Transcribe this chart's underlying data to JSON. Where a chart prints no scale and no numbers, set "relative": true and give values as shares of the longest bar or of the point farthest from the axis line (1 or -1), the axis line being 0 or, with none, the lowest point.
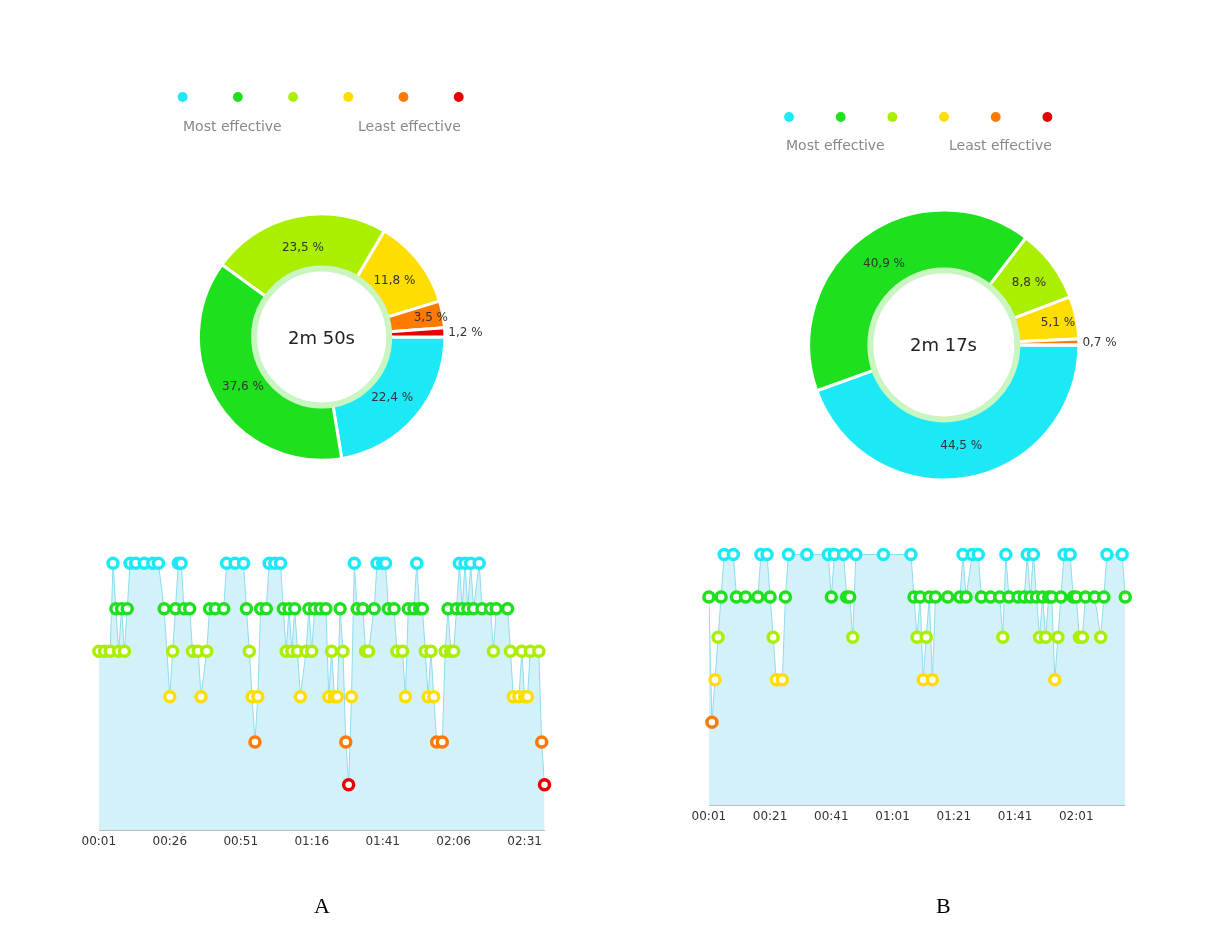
{
  "chart_data": [
    {
      "type": "donut",
      "categories": [
        null,
        null,
        null,
        null,
        null,
        null
      ],
      "values": [
        22.4,
        37.6,
        23.5,
        11.8,
        3.5,
        1.2
      ],
      "colors": [
        "#1de9f6",
        "#1ee01e",
        "#aaee00",
        "#ffdd00",
        "#ff7a00",
        "#e80000"
      ],
      "value_labels": [
        "22,4 %",
        "37,6 %",
        "23,5 %",
        "11,8 %",
        "3,5 %",
        "1,2 %"
      ],
      "annotations": [
        "2m 50s",
        "Most effective",
        "Least effective"
      ]
    },
    {
      "type": "area",
      "relative": true,
      "marker": "circle",
      "color": "#8fdcef",
      "tick_labels": "x",
      "x": [
        1,
        3,
        5,
        6,
        7,
        8,
        9,
        10,
        11,
        12,
        14,
        17,
        20,
        22,
        24,
        26,
        27,
        28,
        29,
        30,
        31,
        33,
        34,
        36,
        37,
        39,
        40,
        42,
        45,
        46,
        49,
        52,
        53,
        54,
        55,
        56,
        57,
        58,
        60,
        61,
        63,
        65,
        66,
        67,
        68,
        69,
        70,
        71,
        72,
        74,
        75,
        76,
        77,
        79,
        81,
        82,
        83,
        84,
        85,
        86,
        87,
        88,
        89,
        90,
        91,
        92,
        94,
        95,
        96,
        98,
        99,
        101,
        102,
        103,
        105,
        106,
        108,
        109,
        110,
        112,
        113,
        114,
        115,
        116,
        117,
        118,
        119,
        120,
        122,
        123,
        124,
        125,
        126,
        127,
        128,
        129,
        130,
        131,
        132,
        133,
        135,
        136,
        139,
        140,
        141,
        145,
        146,
        147,
        149,
        150,
        151,
        152,
        153,
        156,
        157,
        158
      ],
      "values": [
        0.67,
        0.67,
        0.67,
        1,
        0.83,
        0.67,
        0.83,
        0.67,
        0.83,
        1,
        1,
        1,
        1,
        1,
        0.83,
        0.5,
        0.67,
        0.83,
        1,
        1,
        0.83,
        0.83,
        0.67,
        0.67,
        0.5,
        0.67,
        0.83,
        0.83,
        0.83,
        1,
        1,
        1,
        0.83,
        0.67,
        0.5,
        0.33,
        0.5,
        0.83,
        0.83,
        1,
        1,
        1,
        0.83,
        0.67,
        0.83,
        0.67,
        0.83,
        0.67,
        0.5,
        0.67,
        0.83,
        0.67,
        0.83,
        0.83,
        0.83,
        0.5,
        0.67,
        0.5,
        0.5,
        0.83,
        0.67,
        0.33,
        0.17,
        0.5,
        1,
        0.83,
        0.83,
        0.67,
        0.67,
        0.83,
        1,
        1,
        1,
        0.83,
        0.83,
        0.67,
        0.67,
        0.5,
        0.83,
        0.83,
        1,
        0.83,
        0.83,
        0.67,
        0.5,
        0.67,
        0.5,
        0.33,
        0.33,
        0.67,
        0.83,
        0.67,
        0.67,
        0.83,
        1,
        0.83,
        1,
        0.83,
        1,
        0.83,
        1,
        0.83,
        0.83,
        0.67,
        0.83,
        0.83,
        0.67,
        0.5,
        0.5,
        0.67,
        0.5,
        0.5,
        0.67,
        0.67,
        0.33,
        0.17
      ],
      "colors": [
        "#aaee00",
        "#aaee00",
        "#aaee00",
        "#1de9f6",
        "#1ee01e",
        "#aaee00",
        "#1ee01e",
        "#aaee00",
        "#1ee01e",
        "#1de9f6",
        "#1de9f6",
        "#1de9f6",
        "#1de9f6",
        "#1de9f6",
        "#1ee01e",
        "#ffdd00",
        "#aaee00",
        "#1ee01e",
        "#1de9f6",
        "#1de9f6",
        "#1ee01e",
        "#1ee01e",
        "#aaee00",
        "#aaee00",
        "#ffdd00",
        "#aaee00",
        "#1ee01e",
        "#1ee01e",
        "#1ee01e",
        "#1de9f6",
        "#1de9f6",
        "#1de9f6",
        "#1ee01e",
        "#aaee00",
        "#ffdd00",
        "#ff7a00",
        "#ffdd00",
        "#1ee01e",
        "#1ee01e",
        "#1de9f6",
        "#1de9f6",
        "#1de9f6",
        "#1ee01e",
        "#aaee00",
        "#1ee01e",
        "#aaee00",
        "#1ee01e",
        "#aaee00",
        "#ffdd00",
        "#aaee00",
        "#1ee01e",
        "#aaee00",
        "#1ee01e",
        "#1ee01e",
        "#1ee01e",
        "#ffdd00",
        "#aaee00",
        "#ffdd00",
        "#ffdd00",
        "#1ee01e",
        "#aaee00",
        "#ff7a00",
        "#e80000",
        "#ffdd00",
        "#1de9f6",
        "#1ee01e",
        "#1ee01e",
        "#aaee00",
        "#aaee00",
        "#1ee01e",
        "#1de9f6",
        "#1de9f6",
        "#1de9f6",
        "#1ee01e",
        "#1ee01e",
        "#aaee00",
        "#aaee00",
        "#ffdd00",
        "#1ee01e",
        "#1ee01e",
        "#1de9f6",
        "#1ee01e",
        "#1ee01e",
        "#aaee00",
        "#ffdd00",
        "#aaee00",
        "#ffdd00",
        "#ff7a00",
        "#ff7a00",
        "#aaee00",
        "#1ee01e",
        "#aaee00",
        "#aaee00",
        "#1ee01e",
        "#1de9f6",
        "#1ee01e",
        "#1de9f6",
        "#1ee01e",
        "#1de9f6",
        "#1ee01e",
        "#1de9f6",
        "#1ee01e",
        "#1ee01e",
        "#aaee00",
        "#1ee01e",
        "#1ee01e",
        "#aaee00",
        "#ffdd00",
        "#ffdd00",
        "#aaee00",
        "#ffdd00",
        "#ffdd00",
        "#aaee00",
        "#aaee00",
        "#ff7a00",
        "#e80000"
      ],
      "xlim": [
        1,
        158
      ],
      "xticks": [
        {
          "value": 1,
          "label": "00:01"
        },
        {
          "value": 26,
          "label": "00:26"
        },
        {
          "value": 51,
          "label": "00:51"
        },
        {
          "value": 76,
          "label": "01:16"
        },
        {
          "value": 101,
          "label": "01:41"
        },
        {
          "value": 126,
          "label": "02:06"
        },
        {
          "value": 151,
          "label": "02:31"
        }
      ],
      "annotations": [
        "A"
      ]
    },
    {
      "type": "donut",
      "categories": [
        null,
        null,
        null,
        null,
        null,
        null
      ],
      "values": [
        44.5,
        40.9,
        8.8,
        5.1,
        0.7,
        0
      ],
      "colors": [
        "#1de9f6",
        "#1ee01e",
        "#aaee00",
        "#ffdd00",
        "#ff7a00",
        "#e80000"
      ],
      "value_labels": [
        "44,5 %",
        "40,9 %",
        "8,8 %",
        "5,1 %",
        "0,7 %",
        null
      ],
      "annotations": [
        "2m 17s",
        "Most effective",
        "Least effective"
      ]
    },
    {
      "type": "area",
      "relative": true,
      "marker": "circle",
      "color": "#8fdcef",
      "tick_labels": "x",
      "x": [
        1,
        2,
        3,
        4,
        5,
        6,
        9,
        10,
        13,
        17,
        18,
        20,
        21,
        22,
        23,
        25,
        26,
        27,
        33,
        40,
        41,
        42,
        45,
        46,
        47,
        48,
        49,
        58,
        67,
        68,
        69,
        70,
        71,
        72,
        73,
        74,
        75,
        79,
        83,
        84,
        85,
        87,
        89,
        90,
        93,
        96,
        97,
        98,
        99,
        102,
        104,
        105,
        106,
        107,
        108,
        109,
        110,
        111,
        112,
        113,
        114,
        115,
        116,
        117,
        119,
        120,
        121,
        122,
        123,
        124,
        127,
        129,
        130,
        131,
        136,
        137
      ],
      "values": [
        0.83,
        0.33,
        0.5,
        0.67,
        0.83,
        1,
        1,
        0.83,
        0.83,
        0.83,
        1,
        1,
        0.83,
        0.67,
        0.5,
        0.5,
        0.83,
        1,
        1,
        1,
        0.83,
        1,
        1,
        0.83,
        0.83,
        0.67,
        1,
        1,
        1,
        0.83,
        0.67,
        0.83,
        0.5,
        0.67,
        0.83,
        0.5,
        0.83,
        0.83,
        0.83,
        1,
        0.83,
        1,
        1,
        0.83,
        0.83,
        0.83,
        0.67,
        1,
        0.83,
        0.83,
        0.83,
        1,
        0.83,
        1,
        0.83,
        0.67,
        0.83,
        0.67,
        0.83,
        0.83,
        0.5,
        0.67,
        0.83,
        1,
        1,
        0.83,
        0.83,
        0.67,
        0.67,
        0.83,
        0.83,
        0.67,
        0.83,
        1,
        1,
        0.83
      ],
      "colors": [
        "#1ee01e",
        "#ff7a00",
        "#ffdd00",
        "#aaee00",
        "#1ee01e",
        "#1de9f6",
        "#1de9f6",
        "#1ee01e",
        "#1ee01e",
        "#1ee01e",
        "#1de9f6",
        "#1de9f6",
        "#1ee01e",
        "#aaee00",
        "#ffdd00",
        "#ffdd00",
        "#1ee01e",
        "#1de9f6",
        "#1de9f6",
        "#1de9f6",
        "#1ee01e",
        "#1de9f6",
        "#1de9f6",
        "#1ee01e",
        "#1ee01e",
        "#aaee00",
        "#1de9f6",
        "#1de9f6",
        "#1de9f6",
        "#1ee01e",
        "#aaee00",
        "#1ee01e",
        "#ffdd00",
        "#aaee00",
        "#1ee01e",
        "#ffdd00",
        "#1ee01e",
        "#1ee01e",
        "#1ee01e",
        "#1de9f6",
        "#1ee01e",
        "#1de9f6",
        "#1de9f6",
        "#1ee01e",
        "#1ee01e",
        "#1ee01e",
        "#aaee00",
        "#1de9f6",
        "#1ee01e",
        "#1ee01e",
        "#1ee01e",
        "#1de9f6",
        "#1ee01e",
        "#1de9f6",
        "#1ee01e",
        "#aaee00",
        "#1ee01e",
        "#aaee00",
        "#1ee01e",
        "#1ee01e",
        "#ffdd00",
        "#aaee00",
        "#1ee01e",
        "#1de9f6",
        "#1de9f6",
        "#1ee01e",
        "#1ee01e",
        "#aaee00",
        "#aaee00",
        "#1ee01e",
        "#1ee01e",
        "#aaee00",
        "#1ee01e",
        "#1de9f6",
        "#1de9f6",
        "#1ee01e"
      ],
      "xlim": [
        1,
        137
      ],
      "xticks": [
        {
          "value": 1,
          "label": "00:01"
        },
        {
          "value": 21,
          "label": "00:21"
        },
        {
          "value": 41,
          "label": "00:41"
        },
        {
          "value": 61,
          "label": "01:01"
        },
        {
          "value": 81,
          "label": "01:21"
        },
        {
          "value": 101,
          "label": "01:41"
        },
        {
          "value": 121,
          "label": "02:01"
        }
      ],
      "annotations": [
        "B"
      ]
    }
  ]
}
